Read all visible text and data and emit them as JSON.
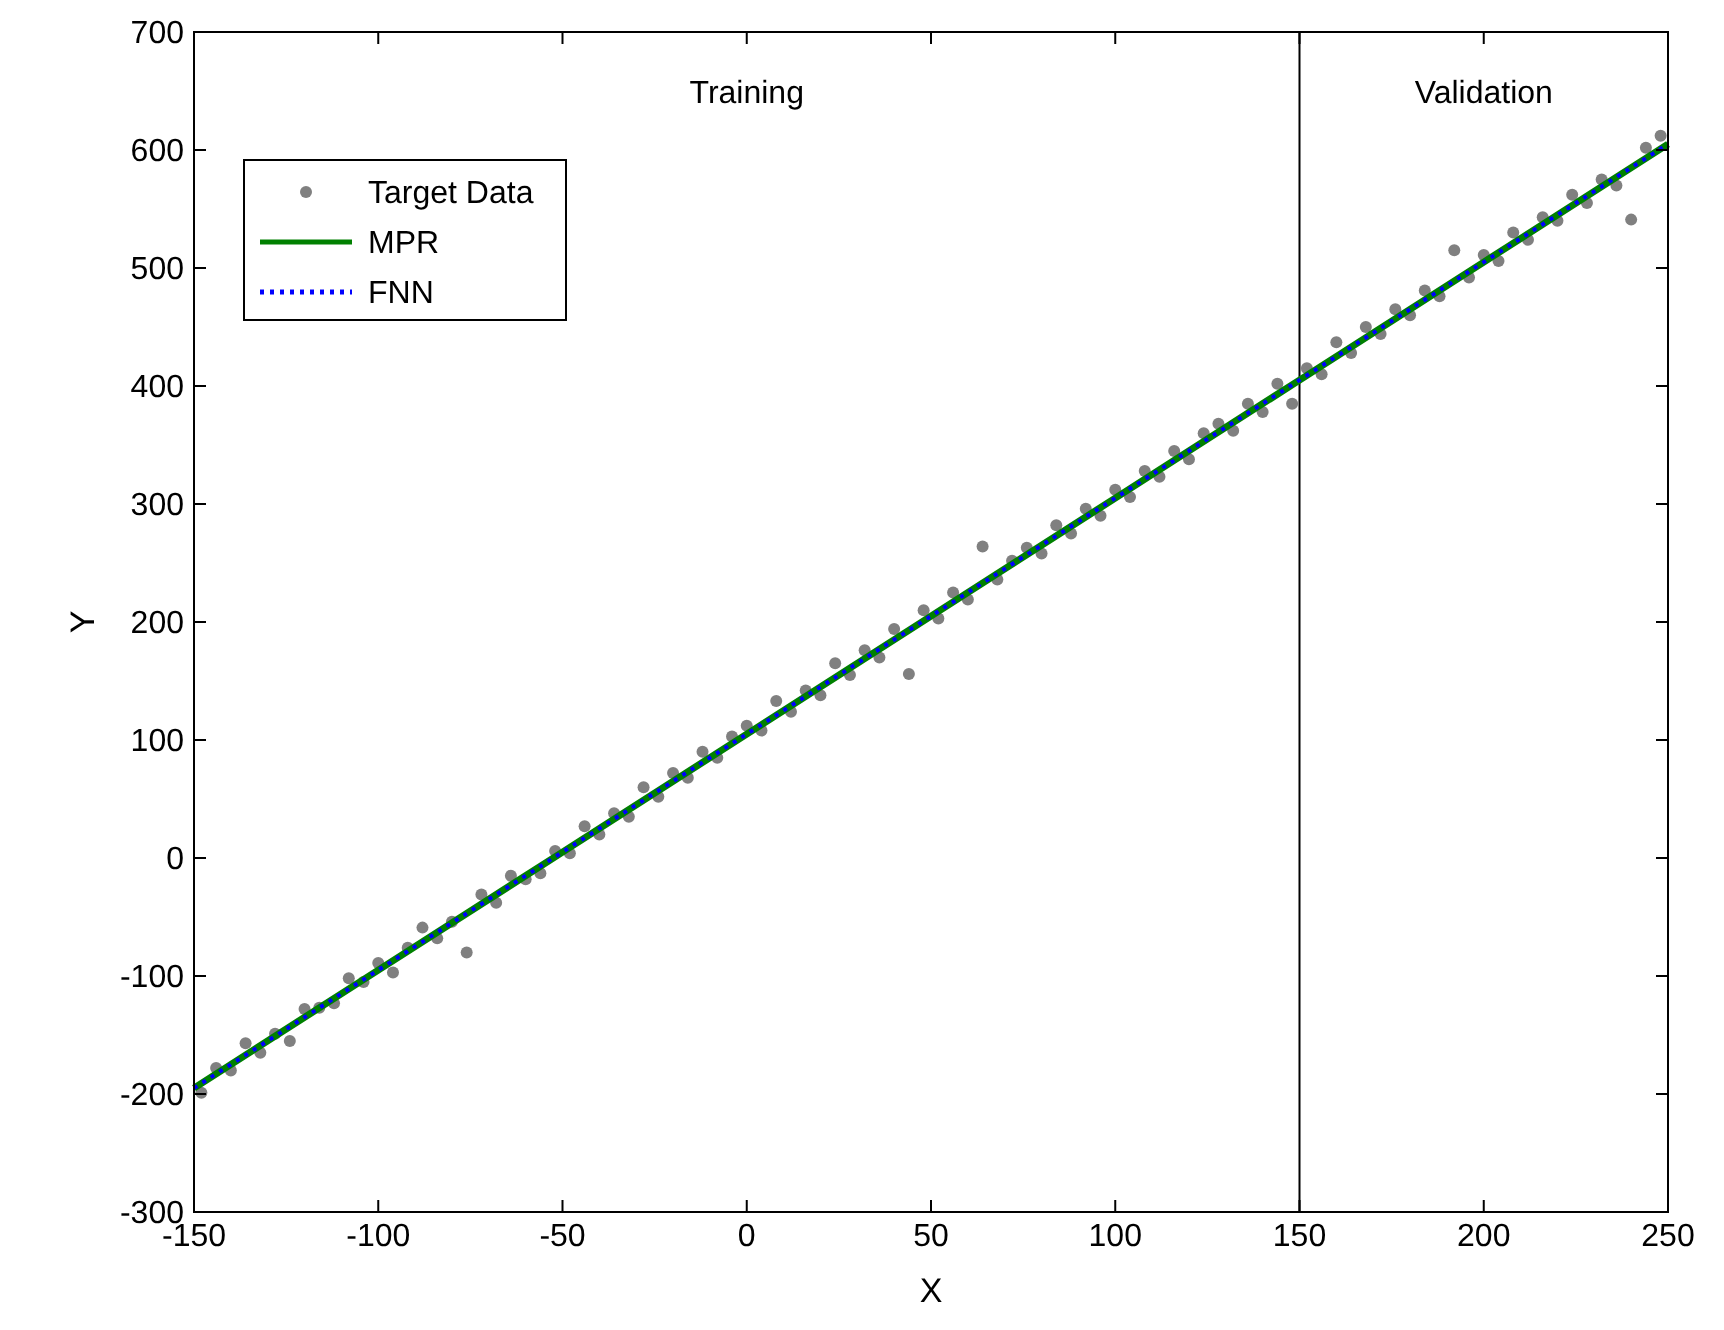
{
  "chart_data": {
    "type": "scatter",
    "xlabel": "X",
    "ylabel": "Y",
    "xlim": [
      -150,
      250
    ],
    "ylim": [
      -300,
      700
    ],
    "xticks": [
      -150,
      -100,
      -50,
      0,
      50,
      100,
      150,
      200,
      250
    ],
    "yticks": [
      -300,
      -200,
      -100,
      0,
      100,
      200,
      300,
      400,
      500,
      600,
      700
    ],
    "grid": false,
    "legend": "top left",
    "x": [
      -148,
      -144,
      -140,
      -136,
      -132,
      -128,
      -124,
      -120,
      -116,
      -112,
      -108,
      -104,
      -100,
      -96,
      -92,
      -88,
      -84,
      -80,
      -76,
      -72,
      -68,
      -64,
      -60,
      -56,
      -52,
      -48,
      -44,
      -40,
      -36,
      -32,
      -28,
      -24,
      -20,
      -16,
      -12,
      -8,
      -4,
      0,
      4,
      8,
      12,
      16,
      20,
      24,
      28,
      32,
      36,
      40,
      44,
      48,
      52,
      56,
      60,
      64,
      68,
      72,
      76,
      80,
      84,
      88,
      92,
      96,
      100,
      104,
      108,
      112,
      116,
      120,
      124,
      128,
      132,
      136,
      140,
      144,
      148,
      152,
      156,
      160,
      164,
      168,
      172,
      176,
      180,
      184,
      188,
      192,
      196,
      200,
      204,
      208,
      212,
      216,
      220,
      224,
      228,
      232,
      236,
      240,
      244,
      248
    ],
    "series": [
      {
        "name": "Target Data",
        "marker": "circle",
        "color": "#808080",
        "values": [
          -199,
          -178,
          -180,
          -157,
          -165,
          -149,
          -155,
          -128,
          -127,
          -123,
          -102,
          -105,
          -89,
          -97,
          -76,
          -59,
          -68,
          -54,
          -80,
          -31,
          -38,
          -15,
          -18,
          -13,
          6,
          4,
          27,
          20,
          38,
          35,
          60,
          52,
          72,
          68,
          90,
          85,
          103,
          112,
          108,
          133,
          124,
          142,
          138,
          165,
          155,
          176,
          170,
          194,
          156,
          210,
          203,
          225,
          219,
          264,
          236,
          252,
          263,
          258,
          282,
          275,
          296,
          290,
          312,
          306,
          328,
          323,
          345,
          338,
          360,
          368,
          362,
          385,
          378,
          402,
          385,
          415,
          410,
          437,
          428,
          450,
          444,
          465,
          460,
          481,
          476,
          515,
          492,
          511,
          506,
          530,
          524,
          543,
          540,
          562,
          555,
          575,
          570,
          541,
          602,
          612
        ]
      },
      {
        "name": "MPR",
        "type": "line",
        "marker": "none",
        "line_style": "solid",
        "color": "#008000",
        "x": [
          -150,
          -100,
          -50,
          0,
          50,
          100,
          150,
          200,
          250
        ],
        "values": [
          -195,
          -95,
          5,
          105,
          205,
          305,
          405,
          505,
          605
        ]
      },
      {
        "name": "FNN",
        "type": "line",
        "marker": "none",
        "line_style": "dotted",
        "color": "#0000ff",
        "x": [
          -150,
          -100,
          -50,
          0,
          50,
          100,
          150,
          200,
          250
        ],
        "values": [
          -195,
          -95,
          5,
          105,
          205,
          305,
          405,
          505,
          605
        ]
      }
    ],
    "ref_lines": [
      {
        "axis": "x",
        "value": 150,
        "color": "#000000"
      }
    ],
    "annotations": [
      "Training",
      "Validation"
    ]
  }
}
